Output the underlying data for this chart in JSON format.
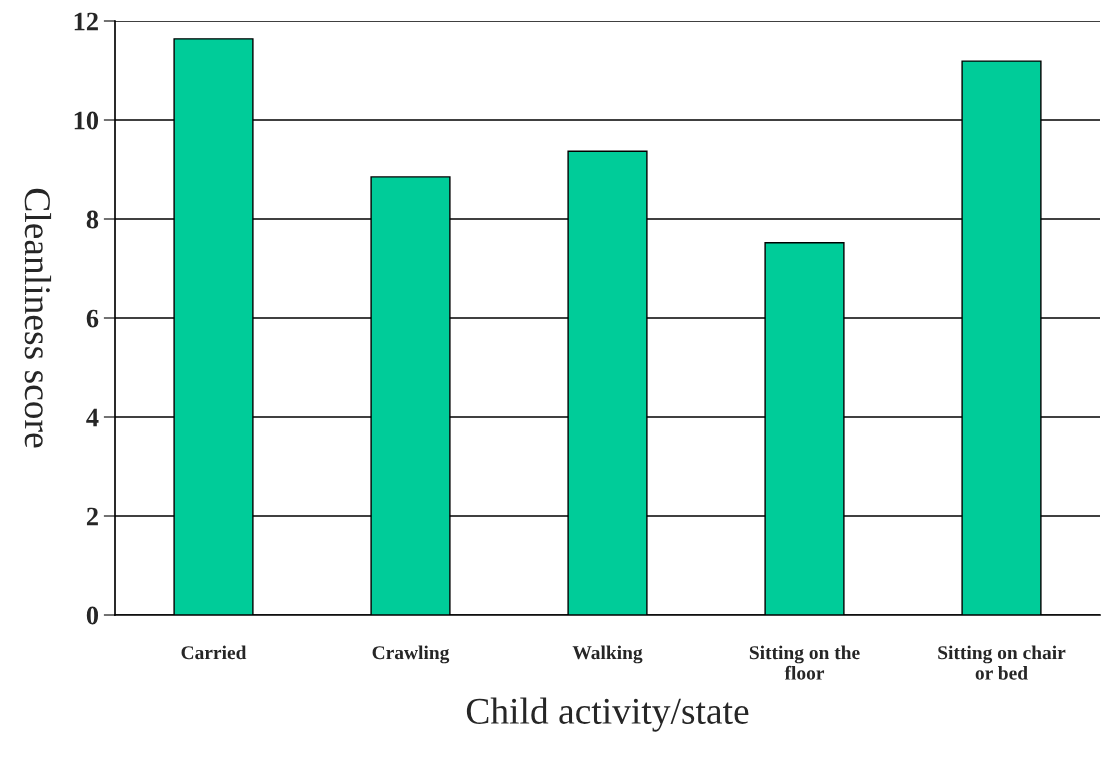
{
  "chart_data": {
    "type": "bar",
    "xlabel": "Child activity/state",
    "ylabel": "Cleanliness score",
    "categories": [
      "Carried",
      "Crawling",
      "Walking",
      "Sitting on the\nfloor",
      "Sitting on chair\nor bed"
    ],
    "values": [
      11.64,
      8.85,
      9.37,
      7.52,
      11.19
    ],
    "color": "#00cc99",
    "ylim": [
      0,
      12
    ],
    "yticks": [
      0,
      2,
      4,
      6,
      8,
      10,
      12
    ],
    "grid": "y",
    "legend": false
  }
}
